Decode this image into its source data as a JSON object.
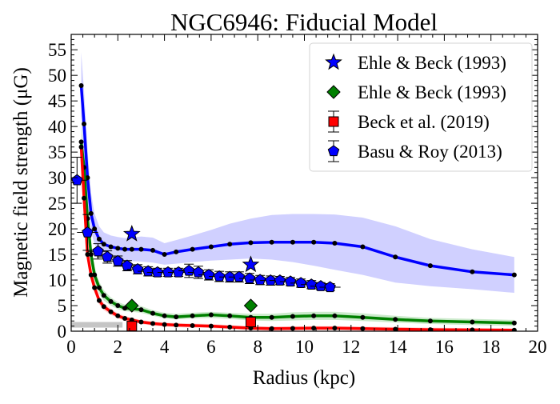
{
  "chart_data": {
    "type": "line",
    "title": "NGC6946: Fiducial Model",
    "xlabel": "Radius (kpc)",
    "ylabel": "Magnetic field strength (μG)",
    "xlim": [
      0,
      20
    ],
    "ylim": [
      0,
      58
    ],
    "xticks": [
      0,
      2,
      4,
      6,
      8,
      10,
      12,
      14,
      16,
      18,
      20
    ],
    "yticks": [
      0,
      5,
      10,
      15,
      20,
      25,
      30,
      35,
      40,
      45,
      50,
      55
    ],
    "grid": false,
    "legend_position": "top-right",
    "legend": [
      {
        "label": "Ehle & Beck (1993)",
        "marker": "star",
        "color": "#0000ff"
      },
      {
        "label": "Ehle & Beck (1993)",
        "marker": "diamond",
        "color": "#008000"
      },
      {
        "label": "Beck et al. (2019)",
        "marker": "square",
        "color": "#ff0000",
        "errorbar": true
      },
      {
        "label": "Basu & Roy (2013)",
        "marker": "pentagon",
        "color": "#0000ff",
        "errorbar": true
      }
    ],
    "model_series": [
      {
        "color": "#0000ff",
        "band_color": "#c8c8ff",
        "x": [
          0.43,
          0.55,
          0.7,
          0.85,
          1.0,
          1.2,
          1.4,
          1.7,
          2.0,
          2.3,
          2.6,
          3.0,
          3.5,
          4.0,
          4.5,
          5.2,
          6.0,
          6.8,
          7.7,
          8.6,
          9.5,
          10.4,
          11.3,
          12.5,
          13.9,
          15.4,
          17.2,
          19.0
        ],
        "y": [
          48.0,
          40.5,
          30.0,
          23.0,
          20.0,
          18.0,
          17.0,
          16.5,
          16.2,
          16.0,
          16.0,
          16.0,
          15.8,
          15.0,
          15.5,
          16.0,
          16.5,
          17.0,
          17.3,
          17.4,
          17.4,
          17.4,
          17.2,
          16.5,
          14.5,
          12.8,
          11.6,
          11.0
        ],
        "band_lo": [
          42.0,
          34.0,
          25.0,
          19.5,
          17.0,
          15.5,
          14.8,
          14.3,
          14.0,
          13.8,
          13.7,
          13.6,
          13.4,
          13.0,
          13.2,
          13.5,
          13.8,
          14.0,
          14.2,
          14.0,
          13.5,
          12.8,
          12.0,
          11.0,
          9.5,
          8.8,
          8.2,
          7.5
        ],
        "band_hi": [
          54.5,
          47.0,
          35.5,
          27.0,
          23.0,
          20.5,
          19.3,
          18.7,
          18.4,
          18.2,
          18.3,
          18.5,
          18.3,
          17.2,
          17.8,
          18.7,
          19.8,
          21.0,
          22.0,
          22.7,
          22.9,
          22.9,
          22.8,
          22.2,
          20.5,
          18.0,
          16.0,
          14.5
        ]
      },
      {
        "color": "#008000",
        "band_color": "#c2e6c2",
        "x": [
          0.43,
          0.55,
          0.7,
          0.85,
          1.0,
          1.2,
          1.4,
          1.7,
          2.0,
          2.3,
          2.6,
          3.0,
          3.5,
          4.0,
          4.5,
          5.2,
          6.0,
          6.8,
          7.7,
          8.6,
          9.5,
          10.4,
          11.3,
          12.5,
          13.9,
          15.4,
          17.2,
          19.0
        ],
        "y": [
          37.0,
          32.0,
          22.0,
          15.0,
          11.0,
          8.5,
          7.0,
          5.8,
          5.0,
          4.5,
          4.4,
          4.2,
          3.5,
          3.0,
          2.8,
          3.0,
          3.2,
          3.0,
          2.7,
          2.7,
          2.9,
          3.0,
          3.0,
          2.7,
          2.3,
          2.0,
          1.8,
          1.6
        ],
        "band_lo": [
          34.0,
          29.0,
          19.5,
          13.0,
          9.5,
          7.3,
          6.0,
          5.0,
          4.3,
          3.9,
          3.8,
          3.6,
          3.0,
          2.5,
          2.3,
          2.5,
          2.6,
          2.4,
          2.1,
          2.0,
          2.1,
          2.2,
          2.2,
          2.0,
          1.7,
          1.4,
          1.2,
          1.0
        ],
        "band_hi": [
          40.0,
          35.0,
          24.5,
          17.0,
          12.5,
          9.7,
          8.0,
          6.6,
          5.7,
          5.2,
          5.1,
          4.9,
          4.1,
          3.6,
          3.4,
          3.6,
          3.8,
          3.6,
          3.4,
          3.4,
          3.7,
          3.8,
          3.8,
          3.5,
          3.0,
          2.6,
          2.4,
          2.2
        ]
      },
      {
        "color": "#ff0000",
        "band_color": "#ffcccc",
        "x": [
          0.43,
          0.55,
          0.7,
          0.85,
          1.0,
          1.2,
          1.4,
          1.7,
          2.0,
          2.3,
          2.6,
          3.0,
          3.5,
          4.0,
          4.5,
          5.2,
          6.0,
          6.8,
          7.7,
          8.6,
          9.5,
          10.4,
          11.3,
          12.5,
          13.9,
          15.4,
          17.2,
          19.0
        ],
        "y": [
          36.0,
          26.0,
          15.0,
          11.0,
          8.5,
          6.0,
          4.8,
          3.8,
          3.0,
          2.5,
          2.2,
          1.8,
          1.5,
          1.3,
          1.2,
          1.1,
          1.0,
          0.8,
          0.6,
          0.5,
          0.55,
          0.6,
          0.6,
          0.5,
          0.4,
          0.3,
          0.25,
          0.2
        ],
        "band_lo": [
          33.0,
          23.5,
          13.5,
          9.8,
          7.5,
          5.2,
          4.1,
          3.2,
          2.5,
          2.0,
          1.8,
          1.4,
          1.1,
          0.9,
          0.8,
          0.7,
          0.6,
          0.4,
          0.2,
          0.1,
          0.15,
          0.2,
          0.2,
          0.1,
          0.05,
          0.0,
          0.0,
          0.0
        ],
        "band_hi": [
          39.0,
          28.5,
          16.5,
          12.2,
          9.5,
          6.8,
          5.5,
          4.4,
          3.5,
          3.0,
          2.6,
          2.2,
          1.9,
          1.7,
          1.6,
          1.5,
          1.4,
          1.2,
          1.0,
          0.9,
          0.95,
          1.0,
          1.0,
          0.9,
          0.8,
          0.7,
          0.6,
          0.5
        ]
      }
    ],
    "observations": {
      "ehle_beck_total": [
        {
          "x": 2.6,
          "y": 19.0
        },
        {
          "x": 7.7,
          "y": 13.0
        }
      ],
      "ehle_beck_ordered": [
        {
          "x": 2.6,
          "y": 5.0
        },
        {
          "x": 7.7,
          "y": 5.0
        }
      ],
      "beck_2019": [
        {
          "x": 2.6,
          "y": 1.0,
          "xerr": 0.0,
          "yerr": 0.0
        },
        {
          "x": 7.7,
          "y": 1.8,
          "xerr": 0.0,
          "yerr": 0.0
        }
      ],
      "beck_2019_band": {
        "y_lo": 0.7,
        "y_hi": 1.8,
        "color": "#bfbfbf"
      },
      "basu_roy_2013": {
        "x": [
          0.25,
          0.7,
          1.15,
          1.55,
          2.0,
          2.4,
          2.85,
          3.3,
          3.7,
          4.15,
          4.6,
          5.05,
          5.45,
          5.9,
          6.35,
          6.8,
          7.2,
          7.65,
          8.1,
          8.55,
          8.95,
          9.4,
          9.85,
          10.3,
          10.7,
          11.1
        ],
        "y": [
          29.5,
          19.3,
          15.6,
          14.5,
          13.7,
          12.8,
          12.1,
          11.7,
          11.5,
          11.5,
          11.5,
          11.8,
          11.5,
          11.0,
          10.7,
          10.6,
          10.6,
          10.3,
          10.0,
          9.9,
          9.9,
          9.7,
          9.4,
          9.1,
          8.8,
          8.6
        ],
        "yerr": [
          4.5,
          3.5,
          1.5,
          1.2,
          1.0,
          1.0,
          0.9,
          0.9,
          0.8,
          0.8,
          0.8,
          1.3,
          1.2,
          1.0,
          1.0,
          1.0,
          1.0,
          1.0,
          0.9,
          0.9,
          0.8,
          0.8,
          0.8,
          0.8,
          0.7,
          0.7
        ],
        "xerr": 0.45
      }
    }
  }
}
